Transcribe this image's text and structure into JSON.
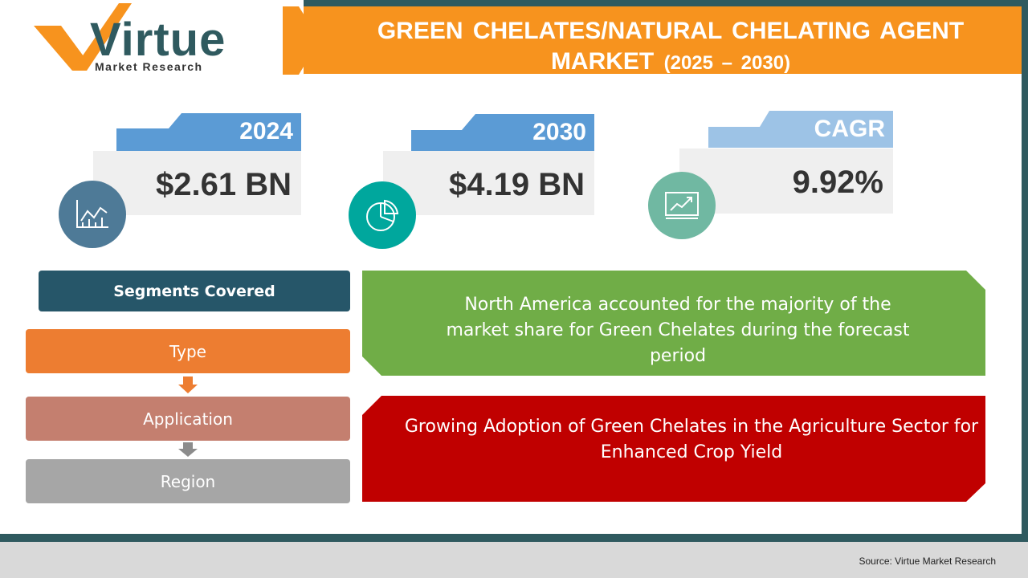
{
  "logo": {
    "name": "Virtue",
    "tagline": "Market Research"
  },
  "header": {
    "title": "GREEN CHELATES/NATURAL CHELATING AGENT MARKET",
    "period": "(2025 – 2030)"
  },
  "stats": [
    {
      "label": "2024",
      "value": "$2.61 BN"
    },
    {
      "label": "2030",
      "value": "$4.19 BN"
    },
    {
      "label": "CAGR",
      "value": "9.92%"
    }
  ],
  "segments": {
    "title": "Segments Covered",
    "items": [
      "Type",
      "Application",
      "Region"
    ]
  },
  "highlights": [
    "North America  accounted for the majority of the market share for Green Chelates during the forecast period",
    "Growing Adoption of Green Chelates in the Agriculture Sector for Enhanced Crop Yield"
  ],
  "footer": {
    "source": "Source: Virtue Market Research"
  }
}
